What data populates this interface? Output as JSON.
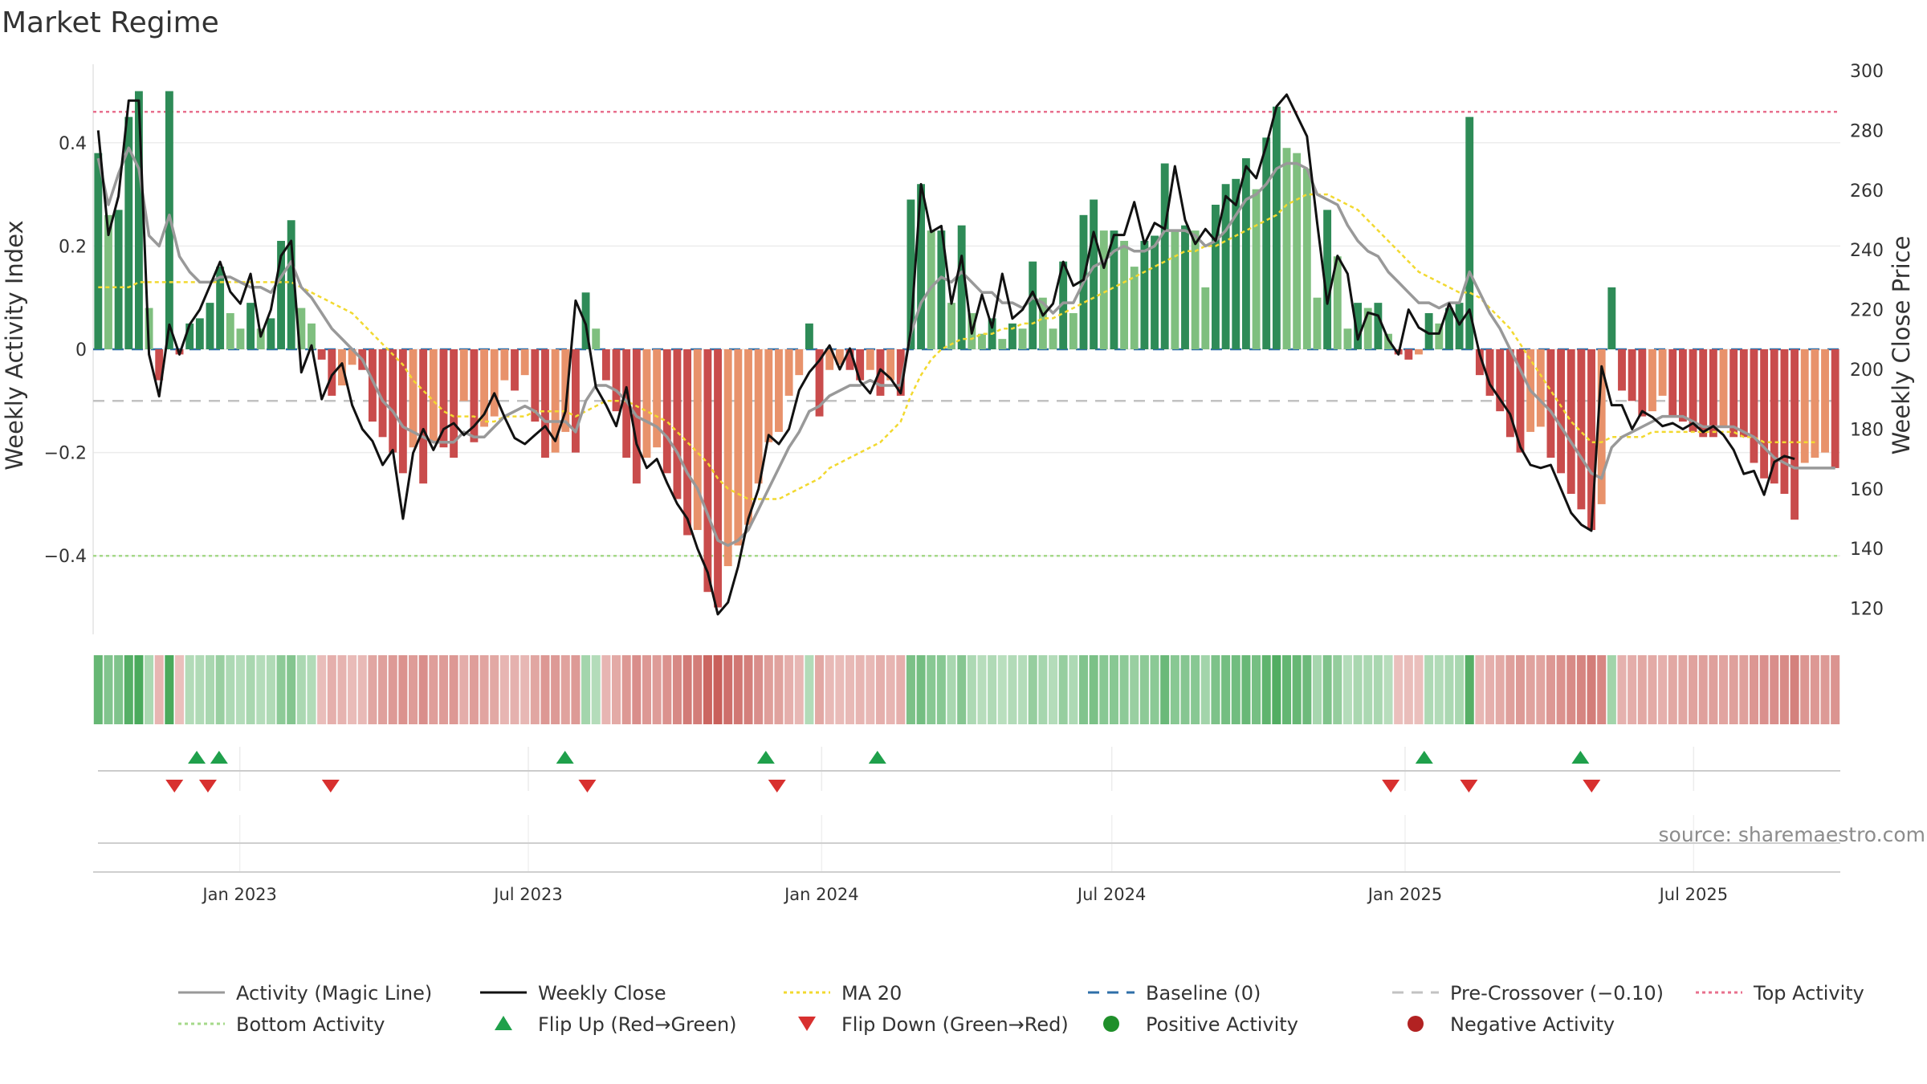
{
  "chart_data": {
    "type": "bar",
    "title": "Market Regime",
    "source_note": "source: sharemaestro.com",
    "left_axis": {
      "label": "Weekly Activity Index",
      "range": [
        -0.55,
        0.55
      ],
      "ticks": [
        {
          "value": 0.4,
          "label": "0.4"
        },
        {
          "value": 0.2,
          "label": "0.2"
        },
        {
          "value": 0,
          "label": "0"
        },
        {
          "value": -0.2,
          "label": "−0.2"
        },
        {
          "value": -0.4,
          "label": "−0.4"
        }
      ]
    },
    "right_axis": {
      "label": "Weekly Close Price",
      "range": [
        110,
        300
      ],
      "ticks": [
        {
          "value": 300,
          "label": "300"
        },
        {
          "value": 280,
          "label": "280"
        },
        {
          "value": 260,
          "label": "260"
        },
        {
          "value": 240,
          "label": "240"
        },
        {
          "value": 220,
          "label": "220"
        },
        {
          "value": 200,
          "label": "200"
        },
        {
          "value": 180,
          "label": "180"
        },
        {
          "value": 160,
          "label": "160"
        },
        {
          "value": 140,
          "label": "140"
        },
        {
          "value": 120,
          "label": "120"
        }
      ]
    },
    "x_axis": {
      "start": "2022-10-01",
      "end": "2025-10-01",
      "ticks": [
        {
          "date": "2023-01-01",
          "label": "Jan 2023"
        },
        {
          "date": "2023-07-01",
          "label": "Jul 2023"
        },
        {
          "date": "2024-01-01",
          "label": "Jan 2024"
        },
        {
          "date": "2024-07-01",
          "label": "Jul 2024"
        },
        {
          "date": "2025-01-01",
          "label": "Jan 2025"
        },
        {
          "date": "2025-07-01",
          "label": "Jul 2025"
        }
      ]
    },
    "reference_lines": {
      "top_activity": 0.46,
      "bottom_activity": -0.4,
      "baseline": 0,
      "pre_crossover": -0.1
    },
    "weekly_activity": [
      0.38,
      0.26,
      0.27,
      0.45,
      0.5,
      0.08,
      -0.06,
      0.5,
      -0.01,
      0.05,
      0.06,
      0.09,
      0.16,
      0.07,
      0.04,
      0.09,
      0.04,
      0.06,
      0.21,
      0.25,
      0.08,
      0.05,
      -0.02,
      -0.09,
      -0.07,
      -0.03,
      -0.04,
      -0.14,
      -0.17,
      -0.2,
      -0.24,
      -0.19,
      -0.26,
      -0.18,
      -0.19,
      -0.21,
      -0.1,
      -0.18,
      -0.15,
      -0.13,
      -0.06,
      -0.08,
      -0.05,
      -0.14,
      -0.21,
      -0.2,
      -0.16,
      -0.2,
      0.11,
      0.04,
      -0.06,
      -0.12,
      -0.21,
      -0.26,
      -0.21,
      -0.19,
      -0.24,
      -0.29,
      -0.36,
      -0.35,
      -0.47,
      -0.5,
      -0.42,
      -0.38,
      -0.34,
      -0.26,
      -0.18,
      -0.16,
      -0.09,
      -0.05,
      0.05,
      -0.13,
      -0.04,
      -0.03,
      -0.04,
      -0.06,
      -0.04,
      -0.09,
      -0.06,
      -0.09,
      0.29,
      0.32,
      0.23,
      0.23,
      0.09,
      0.24,
      0.07,
      0.03,
      0.06,
      0.02,
      0.05,
      0.04,
      0.17,
      0.1,
      0.04,
      0.17,
      0.07,
      0.26,
      0.29,
      0.23,
      0.23,
      0.21,
      0.16,
      0.21,
      0.22,
      0.36,
      0.23,
      0.24,
      0.23,
      0.12,
      0.28,
      0.32,
      0.33,
      0.37,
      0.31,
      0.41,
      0.47,
      0.39,
      0.38,
      0.35,
      0.1,
      0.27,
      0.18,
      0.04,
      0.09,
      0.08,
      0.09,
      0.03,
      -0.01,
      -0.02,
      -0.01,
      0.07,
      0.05,
      0.08,
      0.09,
      0.45,
      -0.05,
      -0.09,
      -0.12,
      -0.17,
      -0.2,
      -0.16,
      -0.15,
      -0.21,
      -0.24,
      -0.28,
      -0.31,
      -0.35,
      -0.3,
      0.12,
      -0.08,
      -0.1,
      -0.13,
      -0.12,
      -0.09,
      -0.13,
      -0.14,
      -0.16,
      -0.17,
      -0.17,
      -0.15,
      -0.17,
      -0.17,
      -0.22,
      -0.25,
      -0.26,
      -0.28,
      -0.33,
      -0.22,
      -0.21,
      -0.2,
      -0.23
    ],
    "weekly_close": [
      280,
      245,
      258,
      290,
      290,
      205,
      191,
      215,
      205,
      215,
      220,
      228,
      236,
      226,
      222,
      232,
      211,
      220,
      238,
      243,
      199,
      208,
      190,
      198,
      202,
      188,
      180,
      176,
      168,
      173,
      150,
      172,
      180,
      173,
      180,
      182,
      178,
      181,
      185,
      192,
      184,
      177,
      175,
      178,
      181,
      176,
      186,
      223,
      215,
      194,
      188,
      181,
      194,
      175,
      167,
      170,
      162,
      155,
      150,
      140,
      132,
      118,
      122,
      134,
      150,
      160,
      178,
      175,
      180,
      193,
      199,
      203,
      208,
      200,
      207,
      196,
      192,
      200,
      197,
      192,
      213,
      262,
      246,
      248,
      222,
      238,
      212,
      225,
      214,
      232,
      217,
      220,
      226,
      218,
      222,
      236,
      228,
      230,
      246,
      234,
      245,
      245,
      256,
      242,
      249,
      247,
      268,
      250,
      242,
      247,
      243,
      258,
      255,
      268,
      264,
      275,
      288,
      292,
      285,
      278,
      249,
      222,
      238,
      232,
      210,
      219,
      218,
      210,
      205,
      220,
      214,
      212,
      212,
      222,
      215,
      220,
      205,
      195,
      190,
      185,
      174,
      168,
      167,
      168,
      160,
      152,
      148,
      146,
      201,
      188,
      188,
      180,
      186,
      184,
      181,
      182,
      180,
      182,
      179,
      181,
      178,
      173,
      165,
      166,
      158,
      169,
      171,
      170
    ],
    "activity_magic_line": [
      0.37,
      0.28,
      0.34,
      0.39,
      0.35,
      0.22,
      0.2,
      0.26,
      0.18,
      0.15,
      0.13,
      0.13,
      0.14,
      0.14,
      0.13,
      0.12,
      0.12,
      0.11,
      0.14,
      0.17,
      0.12,
      0.1,
      0.07,
      0.04,
      0.02,
      0.0,
      -0.02,
      -0.06,
      -0.1,
      -0.12,
      -0.15,
      -0.16,
      -0.17,
      -0.18,
      -0.18,
      -0.18,
      -0.16,
      -0.17,
      -0.17,
      -0.15,
      -0.13,
      -0.12,
      -0.11,
      -0.12,
      -0.14,
      -0.14,
      -0.14,
      -0.16,
      -0.1,
      -0.07,
      -0.07,
      -0.08,
      -0.1,
      -0.13,
      -0.14,
      -0.15,
      -0.17,
      -0.2,
      -0.24,
      -0.27,
      -0.32,
      -0.37,
      -0.38,
      -0.37,
      -0.35,
      -0.31,
      -0.27,
      -0.23,
      -0.19,
      -0.16,
      -0.12,
      -0.11,
      -0.09,
      -0.08,
      -0.07,
      -0.07,
      -0.06,
      -0.07,
      -0.07,
      -0.07,
      0.03,
      0.09,
      0.12,
      0.14,
      0.13,
      0.15,
      0.13,
      0.11,
      0.11,
      0.09,
      0.09,
      0.08,
      0.1,
      0.09,
      0.07,
      0.09,
      0.09,
      0.13,
      0.16,
      0.17,
      0.19,
      0.2,
      0.19,
      0.19,
      0.2,
      0.23,
      0.23,
      0.23,
      0.22,
      0.2,
      0.21,
      0.23,
      0.26,
      0.29,
      0.3,
      0.32,
      0.35,
      0.36,
      0.36,
      0.35,
      0.3,
      0.29,
      0.28,
      0.24,
      0.21,
      0.19,
      0.18,
      0.15,
      0.13,
      0.11,
      0.09,
      0.09,
      0.08,
      0.09,
      0.09,
      0.15,
      0.11,
      0.07,
      0.04,
      0.0,
      -0.04,
      -0.08,
      -0.1,
      -0.12,
      -0.15,
      -0.18,
      -0.21,
      -0.24,
      -0.25,
      -0.19,
      -0.17,
      -0.16,
      -0.15,
      -0.14,
      -0.13,
      -0.13,
      -0.13,
      -0.14,
      -0.15,
      -0.15,
      -0.15,
      -0.15,
      -0.16,
      -0.17,
      -0.19,
      -0.21,
      -0.22,
      -0.23,
      -0.23,
      -0.23,
      -0.23,
      -0.23
    ],
    "ma20": [
      0.12,
      0.12,
      0.12,
      0.12,
      0.13,
      0.13,
      0.13,
      0.13,
      0.13,
      0.13,
      0.13,
      0.13,
      0.13,
      0.13,
      0.13,
      0.13,
      0.13,
      0.13,
      0.13,
      0.13,
      0.12,
      0.11,
      0.1,
      0.09,
      0.08,
      0.07,
      0.05,
      0.03,
      0.01,
      -0.01,
      -0.03,
      -0.06,
      -0.08,
      -0.1,
      -0.12,
      -0.13,
      -0.13,
      -0.13,
      -0.14,
      -0.14,
      -0.13,
      -0.13,
      -0.13,
      -0.12,
      -0.12,
      -0.12,
      -0.12,
      -0.13,
      -0.12,
      -0.11,
      -0.1,
      -0.1,
      -0.1,
      -0.11,
      -0.12,
      -0.13,
      -0.14,
      -0.16,
      -0.18,
      -0.2,
      -0.22,
      -0.25,
      -0.27,
      -0.28,
      -0.29,
      -0.29,
      -0.29,
      -0.29,
      -0.28,
      -0.27,
      -0.26,
      -0.25,
      -0.23,
      -0.22,
      -0.21,
      -0.2,
      -0.19,
      -0.18,
      -0.16,
      -0.14,
      -0.09,
      -0.05,
      -0.02,
      0.0,
      0.01,
      0.02,
      0.02,
      0.03,
      0.03,
      0.04,
      0.04,
      0.05,
      0.05,
      0.06,
      0.06,
      0.07,
      0.08,
      0.09,
      0.1,
      0.11,
      0.12,
      0.13,
      0.14,
      0.15,
      0.16,
      0.17,
      0.18,
      0.19,
      0.19,
      0.2,
      0.2,
      0.21,
      0.22,
      0.23,
      0.24,
      0.25,
      0.26,
      0.28,
      0.29,
      0.3,
      0.3,
      0.3,
      0.29,
      0.28,
      0.27,
      0.25,
      0.23,
      0.21,
      0.19,
      0.17,
      0.15,
      0.14,
      0.13,
      0.12,
      0.11,
      0.11,
      0.1,
      0.08,
      0.06,
      0.04,
      0.01,
      -0.02,
      -0.05,
      -0.08,
      -0.11,
      -0.14,
      -0.16,
      -0.18,
      -0.18,
      -0.17,
      -0.17,
      -0.17,
      -0.17,
      -0.16,
      -0.16,
      -0.16,
      -0.16,
      -0.16,
      -0.16,
      -0.16,
      -0.16,
      -0.16,
      -0.17,
      -0.17,
      -0.18,
      -0.18,
      -0.18,
      -0.18,
      -0.18,
      -0.18
    ],
    "flip_up_dates": [
      "2022-12-05",
      "2022-12-19",
      "2023-07-24",
      "2023-11-27",
      "2024-02-05",
      "2025-01-13",
      "2025-04-21"
    ],
    "flip_down_dates": [
      "2022-11-21",
      "2022-12-12",
      "2023-02-27",
      "2023-08-07",
      "2023-12-04",
      "2024-12-23",
      "2025-02-10",
      "2025-04-28"
    ],
    "legend": [
      {
        "label": "Activity (Magic Line)",
        "marker": "line",
        "color": "#999999",
        "dash": ""
      },
      {
        "label": "Weekly Close",
        "marker": "line",
        "color": "#111111",
        "dash": ""
      },
      {
        "label": "MA 20",
        "marker": "line",
        "color": "#f2d930",
        "dash": "4,4"
      },
      {
        "label": "Baseline (0)",
        "marker": "line",
        "color": "#2f6fa8",
        "dash": "14,10"
      },
      {
        "label": "Pre-Crossover (−0.10)",
        "marker": "line",
        "color": "#c2c2c2",
        "dash": "14,10"
      },
      {
        "label": "Top Activity",
        "marker": "line",
        "color": "#e8708e",
        "dash": "4,4"
      },
      {
        "label": "Bottom Activity",
        "marker": "line",
        "color": "#a6d98a",
        "dash": "4,4"
      },
      {
        "label": "Flip Up (Red→Green)",
        "marker": "triangle-up",
        "color": "#1fa04b"
      },
      {
        "label": "Flip Down (Green→Red)",
        "marker": "triangle-down",
        "color": "#d8302f"
      },
      {
        "label": "Positive Activity",
        "marker": "dot",
        "color": "#1f8f2a"
      },
      {
        "label": "Negative Activity",
        "marker": "dot",
        "color": "#b22222"
      }
    ],
    "colors": {
      "pos_strong": "#2e8b57",
      "pos_light": "#7fbf7f",
      "neg_strong": "#c94c4c",
      "neg_light": "#e8926b",
      "close_line": "#111111",
      "magic_line": "#999999",
      "ma_line": "#f2d930",
      "baseline": "#2f6fa8",
      "pre_crossover": "#c2c2c2",
      "top_activity": "#e8708e",
      "bottom_activity": "#a6d98a",
      "flip_up": "#1fa04b",
      "flip_down": "#d8302f"
    }
  }
}
